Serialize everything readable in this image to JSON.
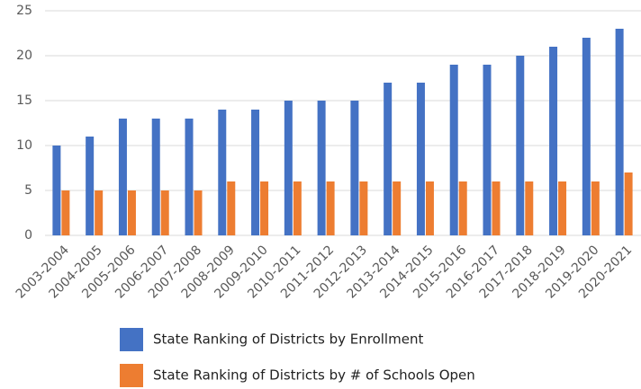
{
  "chart_data": {
    "type": "bar",
    "categories": [
      "2003-2004",
      "2004-2005",
      "2005-2006",
      "2006-2007",
      "2007-2008",
      "2008-2009",
      "2009-2010",
      "2010-2011",
      "2011-2012",
      "2012-2013",
      "2013-2014",
      "2014-2015",
      "2015-2016",
      "2016-2017",
      "2017-2018",
      "2018-2019",
      "2019-2020",
      "2020-2021"
    ],
    "series": [
      {
        "name": "State Ranking of Districts by Enrollment",
        "color": "#4472c4",
        "values": [
          10,
          11,
          13,
          13,
          13,
          14,
          14,
          15,
          15,
          15,
          17,
          17,
          19,
          19,
          20,
          21,
          22,
          23
        ]
      },
      {
        "name": "State Ranking of Districts by # of Schools Open",
        "color": "#ed7d31",
        "values": [
          5,
          5,
          5,
          5,
          5,
          6,
          6,
          6,
          6,
          6,
          6,
          6,
          6,
          6,
          6,
          6,
          6,
          7
        ]
      }
    ],
    "ylim": [
      0,
      25
    ],
    "yticks": [
      0,
      5,
      10,
      15,
      20,
      25
    ],
    "grid": true,
    "legend": "bottom"
  }
}
